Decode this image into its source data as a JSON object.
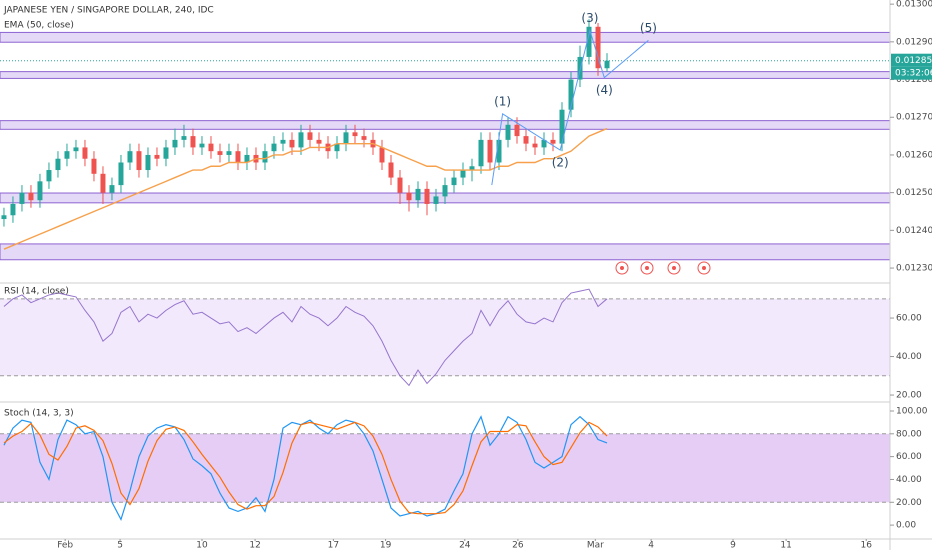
{
  "chart_data": [
    {
      "type": "candlestick",
      "title": "JAPANESE YEN / SINGAPORE DOLLAR, 240, IDC",
      "open": [
        0.01243,
        0.01244,
        0.01247,
        0.0125,
        0.01248,
        0.01253,
        0.01256,
        0.01259,
        0.01261,
        0.01262,
        0.01259,
        0.01255,
        0.0125,
        0.01252,
        0.01258,
        0.01261,
        0.01256,
        0.0126,
        0.01259,
        0.01262,
        0.01264,
        0.01265,
        0.01262,
        0.01263,
        0.01261,
        0.0126,
        0.01261,
        0.01258,
        0.0126,
        0.01258,
        0.01261,
        0.01263,
        0.01264,
        0.01262,
        0.01266,
        0.01264,
        0.01263,
        0.01261,
        0.01263,
        0.01266,
        0.01265,
        0.01264,
        0.01262,
        0.01258,
        0.01254,
        0.0125,
        0.01248,
        0.01251,
        0.01247,
        0.01249,
        0.01252,
        0.01254,
        0.01256,
        0.01257,
        0.01264,
        0.01258,
        0.01264,
        0.01268,
        0.01265,
        0.01263,
        0.01262,
        0.01264,
        0.01263,
        0.01272,
        0.0128,
        0.01286,
        0.01294,
        0.01283
      ],
      "high": [
        0.01246,
        0.01249,
        0.01252,
        0.01252,
        0.01255,
        0.01258,
        0.01261,
        0.01263,
        0.01264,
        0.01264,
        0.01261,
        0.01257,
        0.01254,
        0.0126,
        0.01263,
        0.01263,
        0.01262,
        0.01262,
        0.01264,
        0.01267,
        0.01268,
        0.01267,
        0.01265,
        0.01265,
        0.01263,
        0.01263,
        0.01263,
        0.01262,
        0.01262,
        0.01263,
        0.01265,
        0.01266,
        0.01266,
        0.01268,
        0.01268,
        0.01266,
        0.01265,
        0.01265,
        0.01268,
        0.01268,
        0.01267,
        0.01266,
        0.01264,
        0.0126,
        0.01256,
        0.01252,
        0.01253,
        0.01253,
        0.01251,
        0.01254,
        0.01256,
        0.01258,
        0.01259,
        0.01266,
        0.01266,
        0.01266,
        0.0127,
        0.0127,
        0.01267,
        0.01265,
        0.01266,
        0.01266,
        0.01274,
        0.01282,
        0.01289,
        0.01296,
        0.01295,
        0.01287
      ],
      "low": [
        0.01241,
        0.01242,
        0.01245,
        0.01246,
        0.01246,
        0.01251,
        0.01254,
        0.01257,
        0.01259,
        0.01257,
        0.01253,
        0.01247,
        0.01248,
        0.0125,
        0.01256,
        0.01254,
        0.01254,
        0.01257,
        0.01257,
        0.0126,
        0.01262,
        0.0126,
        0.0126,
        0.01259,
        0.01258,
        0.01258,
        0.01256,
        0.01256,
        0.01256,
        0.01256,
        0.01259,
        0.01261,
        0.0126,
        0.0126,
        0.01262,
        0.01261,
        0.01259,
        0.01259,
        0.01261,
        0.01263,
        0.01262,
        0.0126,
        0.01256,
        0.01252,
        0.01247,
        0.01245,
        0.01246,
        0.01244,
        0.01245,
        0.01247,
        0.0125,
        0.01252,
        0.01253,
        0.01255,
        0.01256,
        0.01256,
        0.01262,
        0.01263,
        0.01261,
        0.0126,
        0.0126,
        0.01261,
        0.01261,
        0.0127,
        0.01278,
        0.01284,
        0.01281,
        0.01282
      ],
      "close": [
        0.01244,
        0.01247,
        0.0125,
        0.01248,
        0.01253,
        0.01256,
        0.01259,
        0.01261,
        0.01262,
        0.01259,
        0.01255,
        0.0125,
        0.01252,
        0.01258,
        0.01261,
        0.01256,
        0.0126,
        0.01259,
        0.01262,
        0.01264,
        0.01265,
        0.01262,
        0.01263,
        0.01261,
        0.0126,
        0.01261,
        0.01258,
        0.0126,
        0.01258,
        0.01261,
        0.01263,
        0.01264,
        0.01262,
        0.01266,
        0.01264,
        0.01263,
        0.01261,
        0.01263,
        0.01266,
        0.01265,
        0.01264,
        0.01262,
        0.01258,
        0.01254,
        0.0125,
        0.01248,
        0.01251,
        0.01247,
        0.01249,
        0.01252,
        0.01254,
        0.01256,
        0.01257,
        0.01264,
        0.01258,
        0.01264,
        0.01268,
        0.01265,
        0.01263,
        0.01262,
        0.01264,
        0.01263,
        0.01272,
        0.0128,
        0.01286,
        0.01294,
        0.01283,
        0.01285
      ],
      "up_color": "#26a69a",
      "down_color": "#ef5350",
      "ema": {
        "name": "EMA (50, close)",
        "color": "#f7a04b",
        "values": [
          0.01235,
          0.01236,
          0.01237,
          0.01238,
          0.01239,
          0.0124,
          0.01241,
          0.01242,
          0.01243,
          0.01244,
          0.01245,
          0.01246,
          0.01247,
          0.01248,
          0.01249,
          0.0125,
          0.01251,
          0.01252,
          0.01253,
          0.01254,
          0.01255,
          0.01256,
          0.01256,
          0.01257,
          0.01257,
          0.01258,
          0.01258,
          0.01258,
          0.01259,
          0.01259,
          0.0126,
          0.0126,
          0.01261,
          0.01261,
          0.01262,
          0.01262,
          0.01262,
          0.01263,
          0.01263,
          0.01263,
          0.01263,
          0.01263,
          0.01262,
          0.01261,
          0.0126,
          0.01259,
          0.01258,
          0.01257,
          0.01257,
          0.01256,
          0.01256,
          0.01256,
          0.01256,
          0.01256,
          0.01256,
          0.01257,
          0.01257,
          0.01258,
          0.01258,
          0.01258,
          0.01259,
          0.01259,
          0.0126,
          0.01261,
          0.01263,
          0.01265,
          0.01266,
          0.01267
        ]
      },
      "zones": [
        [
          0.012899,
          0.012925
        ],
        [
          0.012803,
          0.012821
        ],
        [
          0.012668,
          0.012691
        ],
        [
          0.012473,
          0.012499
        ],
        [
          0.012322,
          0.012364
        ]
      ],
      "waves": [
        {
          "x": 54.2,
          "price": 0.01252
        },
        {
          "label": "(1)",
          "x": 55.4,
          "price": 0.012709
        },
        {
          "label": "(2)",
          "x": 61.8,
          "price": 0.012613
        },
        {
          "label": "(3)",
          "x": 65.1,
          "price": 0.01293
        },
        {
          "label": "(4)",
          "x": 66.7,
          "price": 0.012805
        },
        {
          "label": "(5)",
          "x": 71.6,
          "price": 0.012904
        }
      ],
      "last_price": 0.01285,
      "countdown": "03:32:06",
      "ylim": [
        0.012263,
        0.013011
      ],
      "yticks": [
        {
          "value": 0.0123,
          "label": "0.01230"
        },
        {
          "value": 0.0124,
          "label": "0.01240"
        },
        {
          "value": 0.0125,
          "label": "0.01250"
        },
        {
          "value": 0.0126,
          "label": "0.01260"
        },
        {
          "value": 0.0127,
          "label": "0.01270"
        },
        {
          "value": 0.0128,
          "label": "0.01280"
        },
        {
          "value": 0.0129,
          "label": "0.01290"
        },
        {
          "value": 0.013,
          "label": "0.01300"
        }
      ],
      "xlim": [
        -0.44,
        98.44
      ],
      "xticks": [
        {
          "value": 6.8,
          "label": "Feb"
        },
        {
          "value": 12.9,
          "label": "5"
        },
        {
          "value": 22,
          "label": "10"
        },
        {
          "value": 27.9,
          "label": "12"
        },
        {
          "value": 36.6,
          "label": "17"
        },
        {
          "value": 42.4,
          "label": "19"
        },
        {
          "value": 51.2,
          "label": "24"
        },
        {
          "value": 57.1,
          "label": "26"
        },
        {
          "value": 65.7,
          "label": "Mar"
        },
        {
          "value": 71.9,
          "label": "4"
        },
        {
          "value": 81,
          "label": "9"
        },
        {
          "value": 86.9,
          "label": "11"
        },
        {
          "value": 95.8,
          "label": "16"
        }
      ]
    },
    {
      "type": "line",
      "title": "RSI (14, close)",
      "color": "#9575cd",
      "values": [
        66,
        70,
        72,
        68,
        70,
        72,
        73,
        72,
        71,
        64,
        58,
        48,
        52,
        63,
        66,
        58,
        62,
        60,
        64,
        67,
        69,
        62,
        63,
        60,
        57,
        58,
        53,
        55,
        52,
        56,
        60,
        63,
        58,
        66,
        62,
        60,
        56,
        60,
        66,
        63,
        61,
        56,
        48,
        38,
        30,
        25,
        33,
        26,
        31,
        38,
        43,
        48,
        52,
        64,
        56,
        64,
        69,
        62,
        58,
        57,
        60,
        58,
        68,
        73,
        74,
        75,
        66,
        70
      ],
      "band": [
        30,
        70
      ],
      "ylim": [
        16.9,
        77.7
      ],
      "yticks": [
        {
          "value": 20,
          "label": "20.00"
        },
        {
          "value": 40,
          "label": "40.00"
        },
        {
          "value": 60,
          "label": "60.00"
        }
      ]
    },
    {
      "type": "line",
      "title": "Stoch (14, 3, 3)",
      "series": [
        {
          "color": "#2196f3",
          "values": [
            70,
            85,
            92,
            90,
            55,
            40,
            75,
            92,
            88,
            80,
            82,
            60,
            20,
            5,
            30,
            60,
            78,
            85,
            88,
            86,
            75,
            58,
            52,
            45,
            28,
            15,
            12,
            15,
            24,
            12,
            40,
            85,
            90,
            88,
            92,
            85,
            80,
            88,
            92,
            90,
            80,
            65,
            40,
            15,
            8,
            10,
            12,
            8,
            10,
            14,
            30,
            45,
            80,
            95,
            70,
            80,
            95,
            90,
            75,
            55,
            50,
            55,
            60,
            88,
            95,
            88,
            75,
            72
          ]
        },
        {
          "color": "#ff6d00",
          "values": [
            72,
            78,
            82,
            89,
            79,
            62,
            57,
            69,
            85,
            87,
            83,
            74,
            54,
            28,
            18,
            32,
            56,
            74,
            84,
            86,
            83,
            73,
            62,
            52,
            42,
            29,
            18,
            14,
            17,
            17,
            25,
            46,
            72,
            88,
            90,
            88,
            86,
            84,
            87,
            90,
            87,
            78,
            62,
            40,
            21,
            11,
            10,
            10,
            10,
            11,
            18,
            30,
            52,
            73,
            82,
            82,
            82,
            88,
            87,
            73,
            60,
            53,
            55,
            68,
            81,
            90,
            86,
            78
          ]
        }
      ],
      "band": [
        20,
        80
      ],
      "ylim": [
        -11.3,
        107
      ],
      "yticks": [
        {
          "value": 0,
          "label": "0.00"
        },
        {
          "value": 20,
          "label": "20.00"
        },
        {
          "value": 40,
          "label": "40.00"
        },
        {
          "value": 60,
          "label": "60.00"
        },
        {
          "value": 80,
          "label": "80.00"
        },
        {
          "value": 100,
          "label": "100.00"
        }
      ]
    }
  ]
}
